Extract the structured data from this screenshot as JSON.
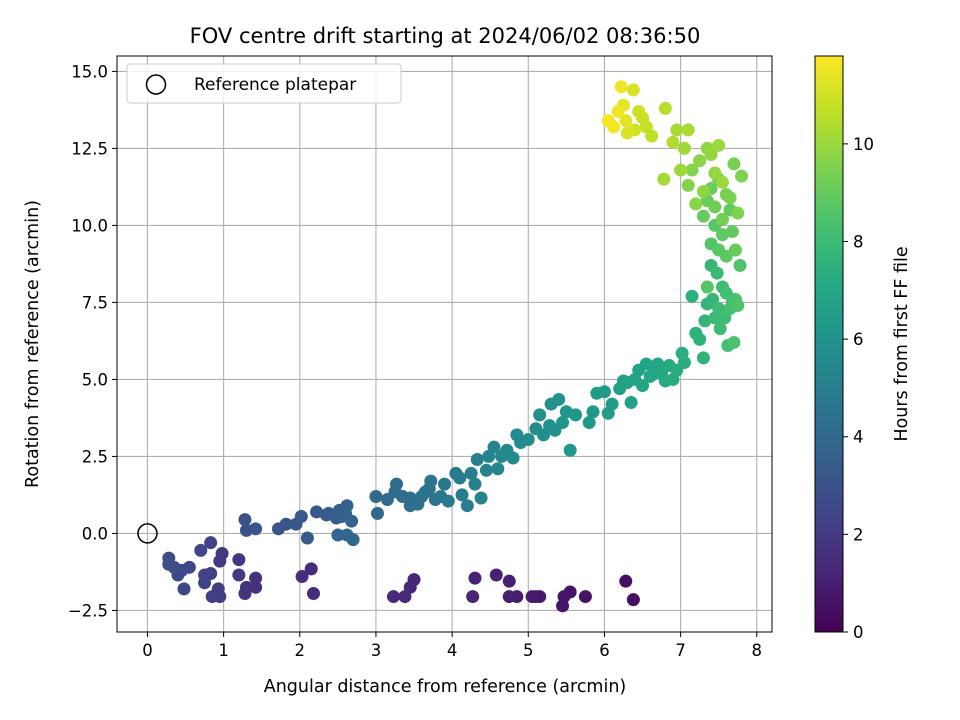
{
  "chart_data": {
    "type": "scatter",
    "title": "FOV centre drift starting at 2024/06/02 08:36:50",
    "xlabel": "Angular distance from reference (arcmin)",
    "ylabel": "Rotation from reference (arcmin)",
    "xlim": [
      -0.4,
      8.2
    ],
    "ylim": [
      -3.2,
      15.5
    ],
    "xticks": [
      0,
      1,
      2,
      3,
      4,
      5,
      6,
      7,
      8
    ],
    "xtick_labels": [
      "0",
      "1",
      "2",
      "3",
      "4",
      "5",
      "6",
      "7",
      "8"
    ],
    "yticks": [
      -2.5,
      0.0,
      2.5,
      5.0,
      7.5,
      10.0,
      12.5,
      15.0
    ],
    "ytick_labels": [
      "−2.5",
      "0.0",
      "2.5",
      "5.0",
      "7.5",
      "10.0",
      "12.5",
      "15.0"
    ],
    "grid": true,
    "legend": {
      "placement": "top-left",
      "entries": [
        "Reference platepar"
      ]
    },
    "reference_point": {
      "x": 0,
      "y": 0
    },
    "colorbar": {
      "label": "Hours from first FF file",
      "colormap": "viridis",
      "range": [
        0,
        11.8
      ],
      "ticks": [
        0,
        2,
        4,
        6,
        8,
        10
      ],
      "tick_labels": [
        "0",
        "2",
        "4",
        "6",
        "8",
        "10"
      ]
    },
    "points": [
      [
        6.38,
        -2.15,
        0.5
      ],
      [
        6.28,
        -1.55,
        0.5
      ],
      [
        5.75,
        -2.05,
        0.6
      ],
      [
        5.55,
        -1.9,
        0.6
      ],
      [
        5.47,
        -2.05,
        0.7
      ],
      [
        5.45,
        -2.35,
        0.7
      ],
      [
        5.1,
        -2.05,
        0.8
      ],
      [
        5.15,
        -2.05,
        0.8
      ],
      [
        5.05,
        -2.05,
        0.9
      ],
      [
        4.85,
        -2.05,
        0.9
      ],
      [
        4.75,
        -1.55,
        1.0
      ],
      [
        4.75,
        -2.05,
        1.0
      ],
      [
        4.58,
        -1.35,
        1.1
      ],
      [
        4.3,
        -1.45,
        1.1
      ],
      [
        4.27,
        -2.05,
        1.2
      ],
      [
        3.5,
        -1.5,
        1.3
      ],
      [
        3.45,
        -1.75,
        1.3
      ],
      [
        3.38,
        -2.05,
        1.4
      ],
      [
        3.23,
        -2.05,
        1.4
      ],
      [
        2.18,
        -1.95,
        1.5
      ],
      [
        2.15,
        -1.15,
        1.5
      ],
      [
        2.03,
        -1.4,
        1.6
      ],
      [
        1.42,
        -1.45,
        1.7
      ],
      [
        1.42,
        -1.75,
        1.7
      ],
      [
        1.3,
        -1.75,
        1.8
      ],
      [
        1.28,
        -1.95,
        1.8
      ],
      [
        1.2,
        -1.35,
        1.9
      ],
      [
        1.2,
        -0.85,
        1.9
      ],
      [
        0.98,
        -0.65,
        2.0
      ],
      [
        0.95,
        -0.9,
        2.0
      ],
      [
        0.93,
        -1.8,
        2.1
      ],
      [
        0.95,
        -2.05,
        2.1
      ],
      [
        0.85,
        -2.05,
        2.2
      ],
      [
        0.83,
        -1.3,
        2.2
      ],
      [
        0.83,
        -0.3,
        2.3
      ],
      [
        0.75,
        -1.35,
        2.3
      ],
      [
        0.75,
        -1.6,
        2.4
      ],
      [
        0.7,
        -0.55,
        2.4
      ],
      [
        0.48,
        -1.8,
        2.5
      ],
      [
        0.55,
        -1.1,
        2.5
      ],
      [
        0.45,
        -1.2,
        2.6
      ],
      [
        0.4,
        -1.35,
        2.6
      ],
      [
        0.35,
        -1.1,
        2.7
      ],
      [
        0.28,
        -0.8,
        2.7
      ],
      [
        0.28,
        -1.0,
        2.8
      ],
      [
        1.28,
        0.45,
        2.9
      ],
      [
        1.3,
        0.1,
        2.9
      ],
      [
        1.42,
        0.15,
        3.0
      ],
      [
        1.72,
        0.15,
        3.1
      ],
      [
        1.82,
        0.3,
        3.1
      ],
      [
        1.95,
        0.3,
        3.2
      ],
      [
        2.02,
        0.55,
        3.2
      ],
      [
        2.1,
        -0.15,
        3.3
      ],
      [
        2.22,
        0.7,
        3.3
      ],
      [
        2.35,
        0.6,
        3.4
      ],
      [
        2.38,
        0.65,
        3.4
      ],
      [
        2.48,
        0.5,
        3.5
      ],
      [
        2.52,
        0.75,
        3.5
      ],
      [
        2.55,
        0.55,
        3.6
      ],
      [
        2.6,
        0.65,
        3.6
      ],
      [
        2.62,
        0.9,
        3.7
      ],
      [
        2.68,
        0.4,
        3.7
      ],
      [
        2.5,
        -0.05,
        3.8
      ],
      [
        2.62,
        -0.05,
        3.8
      ],
      [
        2.7,
        -0.2,
        3.9
      ],
      [
        3.02,
        0.65,
        4.0
      ],
      [
        3.0,
        1.2,
        4.0
      ],
      [
        3.15,
        1.1,
        4.1
      ],
      [
        3.25,
        1.35,
        4.1
      ],
      [
        3.27,
        1.6,
        4.2
      ],
      [
        3.35,
        1.2,
        4.2
      ],
      [
        3.45,
        1.15,
        4.3
      ],
      [
        3.45,
        0.9,
        4.3
      ],
      [
        3.55,
        0.95,
        4.4
      ],
      [
        3.6,
        1.2,
        4.4
      ],
      [
        3.65,
        1.35,
        4.5
      ],
      [
        3.7,
        1.45,
        4.5
      ],
      [
        3.72,
        1.7,
        4.6
      ],
      [
        3.78,
        1.1,
        4.6
      ],
      [
        3.85,
        1.2,
        4.7
      ],
      [
        3.9,
        1.6,
        4.7
      ],
      [
        3.95,
        1.05,
        4.8
      ],
      [
        4.05,
        1.95,
        4.8
      ],
      [
        4.1,
        1.8,
        4.9
      ],
      [
        4.13,
        1.25,
        4.9
      ],
      [
        4.2,
        0.9,
        5.0
      ],
      [
        4.25,
        1.95,
        5.0
      ],
      [
        4.3,
        1.6,
        5.1
      ],
      [
        4.33,
        2.4,
        5.1
      ],
      [
        4.38,
        1.15,
        5.2
      ],
      [
        4.45,
        2.05,
        5.2
      ],
      [
        4.48,
        2.5,
        5.3
      ],
      [
        4.55,
        2.8,
        5.3
      ],
      [
        4.6,
        2.1,
        5.4
      ],
      [
        4.65,
        2.5,
        5.4
      ],
      [
        4.72,
        2.7,
        5.5
      ],
      [
        4.8,
        2.45,
        5.5
      ],
      [
        4.85,
        3.2,
        5.6
      ],
      [
        4.9,
        2.95,
        5.6
      ],
      [
        5.0,
        3.05,
        5.7
      ],
      [
        5.1,
        3.4,
        5.7
      ],
      [
        5.15,
        3.85,
        5.8
      ],
      [
        5.2,
        3.2,
        5.8
      ],
      [
        5.28,
        3.5,
        5.9
      ],
      [
        5.3,
        4.2,
        5.9
      ],
      [
        5.35,
        3.35,
        6.0
      ],
      [
        5.4,
        4.35,
        6.0
      ],
      [
        5.45,
        3.6,
        6.1
      ],
      [
        5.5,
        3.95,
        6.1
      ],
      [
        5.55,
        2.7,
        6.2
      ],
      [
        5.62,
        3.85,
        6.2
      ],
      [
        5.8,
        3.6,
        6.3
      ],
      [
        5.85,
        3.95,
        6.3
      ],
      [
        5.9,
        4.55,
        6.4
      ],
      [
        6.0,
        4.6,
        6.4
      ],
      [
        6.05,
        3.9,
        6.5
      ],
      [
        6.1,
        4.2,
        6.5
      ],
      [
        6.2,
        4.7,
        6.6
      ],
      [
        6.25,
        4.95,
        6.6
      ],
      [
        6.3,
        4.9,
        6.7
      ],
      [
        6.35,
        4.25,
        6.7
      ],
      [
        6.4,
        5.0,
        6.8
      ],
      [
        6.45,
        5.3,
        6.8
      ],
      [
        6.5,
        4.8,
        6.9
      ],
      [
        6.55,
        5.5,
        6.9
      ],
      [
        6.6,
        5.1,
        7.0
      ],
      [
        6.65,
        5.2,
        7.0
      ],
      [
        6.7,
        5.5,
        7.1
      ],
      [
        6.75,
        5.2,
        7.1
      ],
      [
        6.8,
        4.95,
        7.2
      ],
      [
        6.85,
        5.45,
        7.2
      ],
      [
        6.9,
        5.0,
        7.3
      ],
      [
        6.95,
        5.3,
        7.3
      ],
      [
        7.02,
        5.85,
        7.4
      ],
      [
        7.05,
        5.55,
        7.4
      ],
      [
        7.15,
        7.7,
        7.5
      ],
      [
        7.2,
        6.5,
        7.5
      ],
      [
        7.25,
        6.3,
        7.6
      ],
      [
        7.3,
        5.7,
        7.6
      ],
      [
        7.32,
        6.9,
        7.7
      ],
      [
        7.35,
        7.45,
        7.7
      ],
      [
        7.4,
        8.7,
        7.8
      ],
      [
        7.42,
        7.6,
        7.8
      ],
      [
        7.45,
        7.0,
        7.9
      ],
      [
        7.48,
        8.45,
        7.9
      ],
      [
        7.5,
        7.3,
        8.0
      ],
      [
        7.52,
        6.65,
        8.0
      ],
      [
        7.55,
        8.0,
        8.1
      ],
      [
        7.58,
        7.0,
        8.1
      ],
      [
        7.6,
        7.8,
        8.2
      ],
      [
        7.62,
        6.1,
        8.2
      ],
      [
        7.65,
        7.3,
        8.3
      ],
      [
        7.68,
        7.5,
        8.3
      ],
      [
        7.7,
        6.2,
        8.4
      ],
      [
        7.72,
        7.6,
        8.4
      ],
      [
        7.75,
        7.4,
        8.5
      ],
      [
        7.78,
        8.7,
        8.5
      ],
      [
        7.35,
        8.0,
        8.6
      ],
      [
        7.4,
        9.4,
        8.6
      ],
      [
        7.45,
        10.0,
        8.7
      ],
      [
        7.5,
        9.2,
        8.7
      ],
      [
        7.55,
        9.7,
        8.8
      ],
      [
        7.6,
        9.0,
        8.8
      ],
      [
        7.65,
        10.5,
        8.9
      ],
      [
        7.68,
        9.8,
        8.9
      ],
      [
        7.72,
        9.2,
        9.0
      ],
      [
        7.3,
        10.3,
        9.0
      ],
      [
        7.35,
        10.8,
        9.1
      ],
      [
        7.4,
        11.2,
        9.1
      ],
      [
        7.45,
        10.6,
        9.2
      ],
      [
        7.5,
        11.5,
        9.2
      ],
      [
        7.55,
        10.2,
        9.3
      ],
      [
        7.6,
        11.0,
        9.3
      ],
      [
        7.65,
        10.9,
        9.4
      ],
      [
        7.7,
        12.0,
        9.4
      ],
      [
        7.75,
        10.4,
        9.5
      ],
      [
        7.8,
        11.6,
        9.5
      ],
      [
        7.1,
        11.3,
        9.6
      ],
      [
        7.15,
        11.8,
        9.6
      ],
      [
        7.2,
        10.7,
        9.7
      ],
      [
        7.25,
        12.1,
        9.7
      ],
      [
        7.3,
        11.1,
        9.8
      ],
      [
        7.35,
        12.5,
        9.8
      ],
      [
        7.4,
        12.3,
        9.9
      ],
      [
        7.45,
        11.7,
        9.9
      ],
      [
        7.5,
        12.6,
        10.0
      ],
      [
        7.55,
        11.4,
        10.0
      ],
      [
        7.0,
        11.8,
        10.1
      ],
      [
        7.05,
        12.5,
        10.1
      ],
      [
        6.78,
        11.5,
        10.2
      ],
      [
        6.95,
        13.1,
        10.2
      ],
      [
        7.1,
        13.1,
        10.3
      ],
      [
        6.9,
        12.7,
        10.4
      ],
      [
        6.8,
        13.8,
        10.5
      ],
      [
        6.62,
        12.9,
        10.6
      ],
      [
        6.55,
        13.2,
        10.7
      ],
      [
        6.5,
        13.5,
        10.8
      ],
      [
        6.45,
        13.7,
        10.9
      ],
      [
        6.4,
        13.1,
        11.0
      ],
      [
        6.38,
        14.4,
        11.1
      ],
      [
        6.3,
        13.0,
        11.2
      ],
      [
        6.28,
        13.4,
        11.3
      ],
      [
        6.25,
        13.9,
        11.4
      ],
      [
        6.22,
        14.5,
        11.5
      ],
      [
        6.18,
        13.7,
        11.5
      ],
      [
        6.12,
        13.2,
        11.6
      ],
      [
        6.05,
        13.4,
        11.7
      ]
    ]
  }
}
